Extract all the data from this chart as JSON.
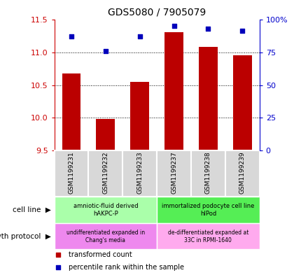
{
  "title": "GDS5080 / 7905079",
  "samples": [
    "GSM1199231",
    "GSM1199232",
    "GSM1199233",
    "GSM1199237",
    "GSM1199238",
    "GSM1199239"
  ],
  "transformed_counts": [
    10.68,
    9.98,
    10.55,
    11.3,
    11.08,
    10.95
  ],
  "percentile_ranks": [
    87,
    76,
    87,
    95,
    93,
    91
  ],
  "ylim_left": [
    9.5,
    11.5
  ],
  "ylim_right": [
    0,
    100
  ],
  "yticks_left": [
    9.5,
    10.0,
    10.5,
    11.0,
    11.5
  ],
  "yticks_right": [
    0,
    25,
    50,
    75,
    100
  ],
  "ytick_labels_right": [
    "0",
    "25",
    "50",
    "75",
    "100%"
  ],
  "bar_color": "#bb0000",
  "dot_color": "#0000bb",
  "cell_line_groups": [
    {
      "label": "amniotic-fluid derived\nhAKPC-P",
      "color": "#aaffaa",
      "span": [
        0,
        3
      ]
    },
    {
      "label": "immortalized podocyte cell line\nhIPod",
      "color": "#55ee55",
      "span": [
        3,
        6
      ]
    }
  ],
  "growth_protocol_groups": [
    {
      "label": "undifferentiated expanded in\nChang's media",
      "color": "#ee88ee",
      "span": [
        0,
        3
      ]
    },
    {
      "label": "de-differentiated expanded at\n33C in RPMI-1640",
      "color": "#ffaaee",
      "span": [
        3,
        6
      ]
    }
  ],
  "legend_items": [
    {
      "color": "#bb0000",
      "label": "transformed count"
    },
    {
      "color": "#0000bb",
      "label": "percentile rank within the sample"
    }
  ],
  "left_label_color": "#cc0000",
  "right_label_color": "#0000cc",
  "bar_width": 0.55
}
